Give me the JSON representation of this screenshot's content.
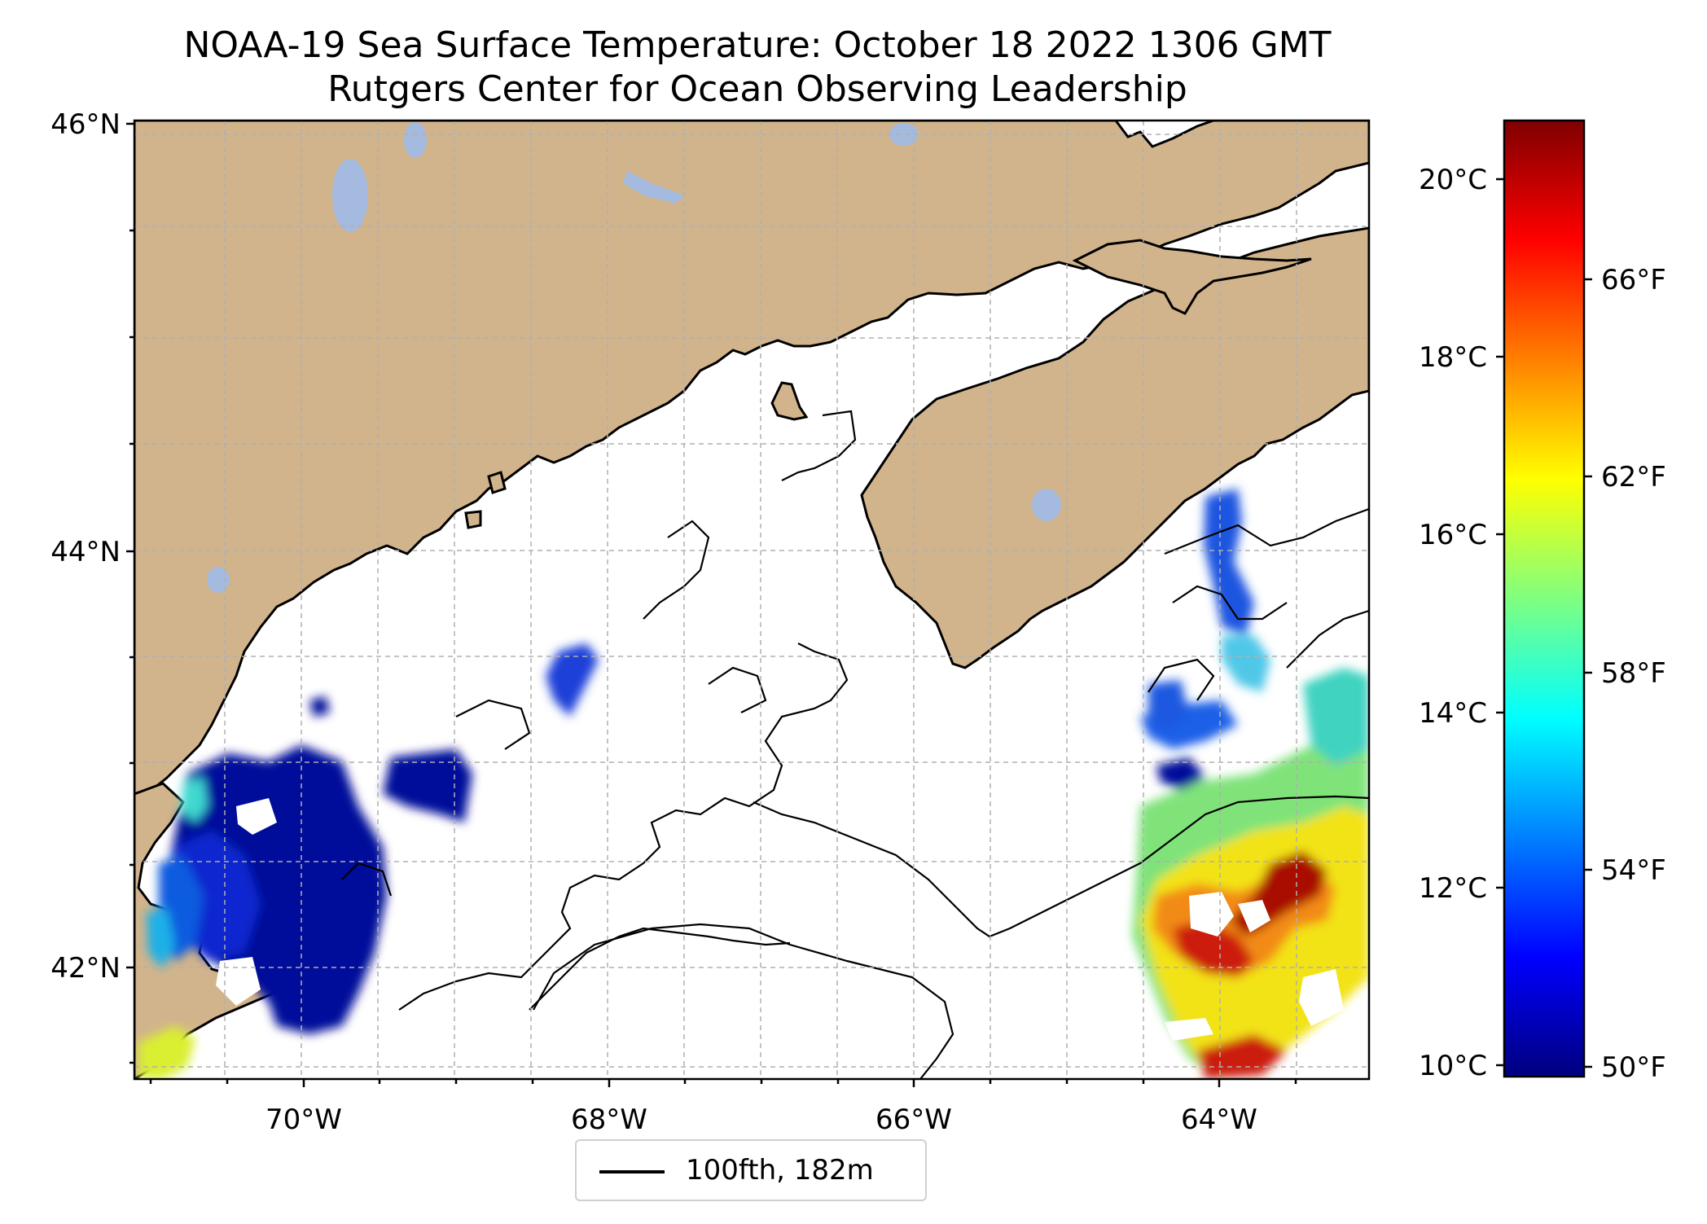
{
  "title": {
    "line1": "NOAA-19 Sea Surface Temperature: October 18 2022 1306 GMT",
    "line2": "Rutgers Center for Ocean Observing Leadership"
  },
  "map": {
    "region": "Gulf of Maine",
    "lat_range": [
      41.5,
      46.0
    ],
    "lon_range": [
      -71.1,
      -63.0
    ],
    "lat_ticks": [
      {
        "value": 46,
        "label": "46°N"
      },
      {
        "value": 44,
        "label": "44°N"
      },
      {
        "value": 42,
        "label": "42°N"
      }
    ],
    "lon_ticks": [
      {
        "value": -70,
        "label": "70°W"
      },
      {
        "value": -68,
        "label": "68°W"
      },
      {
        "value": -66,
        "label": "66°W"
      },
      {
        "value": -64,
        "label": "64°W"
      }
    ],
    "grid": true,
    "colors": {
      "land": "#d2b48c",
      "lakes": "#a4bbdf",
      "ocean": "#ffffff",
      "coastline": "#000000",
      "grid": "#b0b0b0"
    }
  },
  "legend": {
    "label": "100fth, 182m",
    "line_color": "#000000"
  },
  "colorbar": {
    "colormap": "jet",
    "celsius_range": [
      10,
      20.5
    ],
    "celsius_ticks": [
      {
        "value": 10,
        "label": "10°C"
      },
      {
        "value": 12,
        "label": "12°C"
      },
      {
        "value": 14,
        "label": "14°C"
      },
      {
        "value": 16,
        "label": "16°C"
      },
      {
        "value": 18,
        "label": "18°C"
      },
      {
        "value": 20,
        "label": "20°C"
      }
    ],
    "fahrenheit_ticks": [
      {
        "value": 50,
        "label": "50°F"
      },
      {
        "value": 54,
        "label": "54°F"
      },
      {
        "value": 58,
        "label": "58°F"
      },
      {
        "value": 62,
        "label": "62°F"
      },
      {
        "value": 66,
        "label": "66°F"
      }
    ]
  }
}
